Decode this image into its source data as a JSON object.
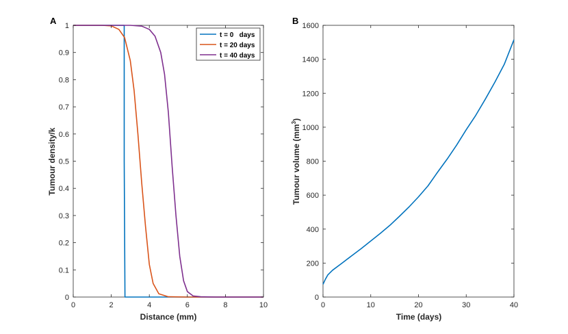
{
  "chart_data": [
    {
      "panel": "A",
      "type": "line",
      "xlabel": "Distance (mm)",
      "ylabel": "Tumour density/k",
      "xlim": [
        0,
        10
      ],
      "ylim": [
        0,
        1
      ],
      "xticks": [
        0,
        2,
        4,
        6,
        8,
        10
      ],
      "yticks": [
        0,
        0.1,
        0.2,
        0.3,
        0.4,
        0.5,
        0.6,
        0.7,
        0.8,
        0.9,
        1
      ],
      "xtick_labels": [
        "0",
        "2",
        "4",
        "6",
        "8",
        "10"
      ],
      "ytick_labels": [
        "0",
        "0.1",
        "0.2",
        "0.3",
        "0.4",
        "0.5",
        "0.6",
        "0.7",
        "0.8",
        "0.9",
        "1"
      ],
      "legend_position": "top-right",
      "series": [
        {
          "name": "t = 0   days",
          "color": "#0072BD",
          "x": [
            0,
            2.68,
            2.68,
            2.72,
            10
          ],
          "y": [
            1,
            1,
            0.5,
            0,
            0
          ]
        },
        {
          "name": "t = 20 days",
          "color": "#D95319",
          "x": [
            0,
            1.5,
            2.0,
            2.4,
            2.7,
            3.0,
            3.2,
            3.4,
            3.5,
            3.6,
            3.8,
            4.0,
            4.2,
            4.5,
            5.0,
            6.0,
            10
          ],
          "y": [
            1,
            1,
            0.998,
            0.985,
            0.955,
            0.87,
            0.76,
            0.6,
            0.51,
            0.42,
            0.26,
            0.12,
            0.05,
            0.012,
            0.001,
            0,
            0
          ]
        },
        {
          "name": "t = 40 days",
          "color": "#7E2F8E",
          "x": [
            0,
            3.0,
            3.6,
            4.0,
            4.3,
            4.6,
            4.8,
            5.0,
            5.1,
            5.2,
            5.4,
            5.6,
            5.8,
            6.0,
            6.3,
            6.7,
            7.5,
            10
          ],
          "y": [
            1,
            1,
            0.997,
            0.985,
            0.96,
            0.9,
            0.82,
            0.68,
            0.58,
            0.48,
            0.3,
            0.15,
            0.06,
            0.02,
            0.004,
            0.001,
            0,
            0
          ]
        }
      ]
    },
    {
      "panel": "B",
      "type": "line",
      "xlabel": "Time (days)",
      "ylabel_main": "Tumour volume (mm",
      "ylabel_sup": "3",
      "ylabel_end": ")",
      "xlim": [
        0,
        40
      ],
      "ylim": [
        0,
        1600
      ],
      "xticks": [
        0,
        10,
        20,
        30,
        40
      ],
      "yticks": [
        0,
        200,
        400,
        600,
        800,
        1000,
        1200,
        1400,
        1600
      ],
      "xtick_labels": [
        "0",
        "10",
        "20",
        "30",
        "40"
      ],
      "ytick_labels": [
        "0",
        "200",
        "400",
        "600",
        "800",
        "1000",
        "1200",
        "1400",
        "1600"
      ],
      "series": [
        {
          "name": "Tumour volume",
          "color": "#0072BD",
          "x": [
            0,
            0.5,
            1,
            2,
            4,
            6,
            8,
            10,
            12,
            14,
            16,
            18,
            20,
            22,
            24,
            26,
            28,
            30,
            32,
            34,
            36,
            38,
            40
          ],
          "y": [
            75,
            105,
            130,
            158,
            200,
            243,
            285,
            330,
            375,
            422,
            475,
            530,
            590,
            655,
            735,
            812,
            895,
            985,
            1070,
            1165,
            1265,
            1372,
            1515
          ]
        }
      ]
    }
  ]
}
